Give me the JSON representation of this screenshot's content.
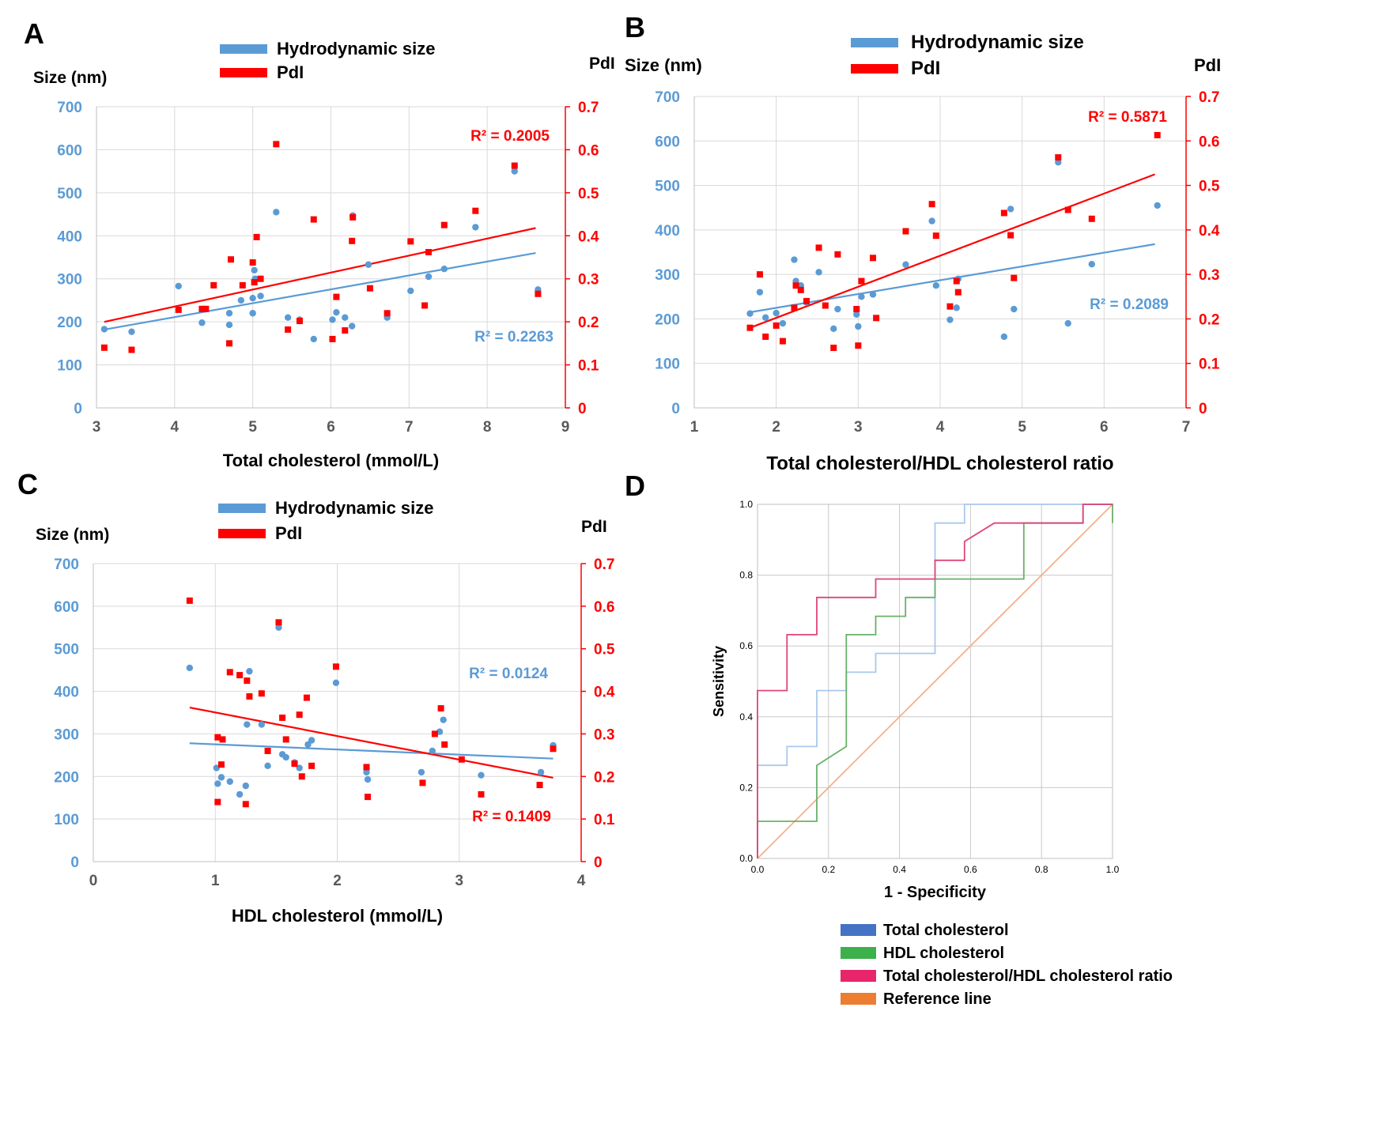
{
  "colors": {
    "blue": "#5B9BD5",
    "red": "#FF0000",
    "roc_total": "#A9C8EC",
    "roc_hdl": "#69B06A",
    "roc_ratio": "#E0447C",
    "roc_ref": "#F6B08A",
    "swatch_total": "#4472C4",
    "swatch_hdl": "#3CB04A",
    "swatch_ratio": "#E8246A",
    "swatch_ref": "#ED7D31"
  },
  "chart_data": [
    {
      "panel": "A",
      "type": "scatter",
      "legend": [
        "Hydrodynamic size",
        "PdI"
      ],
      "ylabel_left": "Size (nm)",
      "ylabel_right": "PdI",
      "xlabel": "Total cholesterol (mmol/L)",
      "xlim": [
        3,
        9
      ],
      "xticks": [
        3,
        4,
        5,
        6,
        7,
        8,
        9
      ],
      "xtick_labels": [
        "3",
        "4",
        "5",
        "6",
        "7",
        "8",
        "9"
      ],
      "ylim_left": [
        0,
        700
      ],
      "yticks_left": [
        0,
        100,
        200,
        300,
        400,
        500,
        600,
        700
      ],
      "ytick_labels_left": [
        "0",
        "100",
        "200",
        "300",
        "400",
        "500",
        "600",
        "700"
      ],
      "ylim_right": [
        0,
        0.7
      ],
      "yticks_right": [
        0,
        0.1,
        0.2,
        0.3,
        0.4,
        0.5,
        0.6,
        0.7
      ],
      "ytick_labels_right": [
        "0",
        "0.1",
        "0.2",
        "0.3",
        "0.4",
        "0.5",
        "0.6",
        "0.7"
      ],
      "series": [
        {
          "name": "Hydrodynamic size",
          "axis": "left",
          "x": [
            3.1,
            3.45,
            4.05,
            4.35,
            4.7,
            4.7,
            4.85,
            5.0,
            5.0,
            5.02,
            5.03,
            5.1,
            5.3,
            5.45,
            5.6,
            5.78,
            6.02,
            6.07,
            6.18,
            6.27,
            6.28,
            6.48,
            6.72,
            7.02,
            7.25,
            7.45,
            7.85,
            8.35,
            8.65
          ],
          "y": [
            183,
            177,
            283,
            198,
            220,
            193,
            250,
            255,
            220,
            320,
            300,
            260,
            455,
            210,
            205,
            160,
            205,
            222,
            210,
            190,
            447,
            333,
            210,
            272,
            305,
            323,
            420,
            550,
            275
          ],
          "r2": "R² = 0.2263",
          "trend": [
            [
              3.1,
              182
            ],
            [
              8.62,
              360
            ]
          ]
        },
        {
          "name": "PdI",
          "axis": "right",
          "x": [
            3.1,
            3.45,
            4.05,
            4.35,
            4.4,
            4.5,
            4.7,
            4.72,
            4.87,
            5.0,
            5.02,
            5.05,
            5.1,
            5.3,
            5.45,
            5.6,
            5.78,
            6.02,
            6.07,
            6.18,
            6.27,
            6.28,
            6.5,
            6.72,
            7.02,
            7.2,
            7.25,
            7.45,
            7.85,
            8.35,
            8.65
          ],
          "y": [
            0.14,
            0.135,
            0.228,
            0.23,
            0.23,
            0.285,
            0.15,
            0.345,
            0.285,
            0.338,
            0.292,
            0.397,
            0.3,
            0.613,
            0.182,
            0.202,
            0.438,
            0.16,
            0.258,
            0.18,
            0.388,
            0.443,
            0.278,
            0.22,
            0.387,
            0.238,
            0.362,
            0.425,
            0.458,
            0.563,
            0.265
          ],
          "r2": "R² = 0.2005",
          "trend": [
            [
              3.1,
              0.2
            ],
            [
              8.62,
              0.418
            ]
          ]
        }
      ]
    },
    {
      "panel": "B",
      "type": "scatter",
      "legend": [
        "Hydrodynamic size",
        "PdI"
      ],
      "ylabel_left": "Size (nm)",
      "ylabel_right": "PdI",
      "xlabel": "Total cholesterol/HDL cholesterol ratio",
      "xlim": [
        1,
        7
      ],
      "xticks": [
        1,
        2,
        3,
        4,
        5,
        6,
        7
      ],
      "xtick_labels": [
        "1",
        "2",
        "3",
        "4",
        "5",
        "6",
        "7"
      ],
      "ylim_left": [
        0,
        700
      ],
      "yticks_left": [
        0,
        100,
        200,
        300,
        400,
        500,
        600,
        700
      ],
      "ytick_labels_left": [
        "0",
        "100",
        "200",
        "300",
        "400",
        "500",
        "600",
        "700"
      ],
      "ylim_right": [
        0,
        0.7
      ],
      "yticks_right": [
        0,
        0.1,
        0.2,
        0.3,
        0.4,
        0.5,
        0.6,
        0.7
      ],
      "ytick_labels_right": [
        "0",
        "0.1",
        "0.2",
        "0.3",
        "0.4",
        "0.5",
        "0.6",
        "0.7"
      ],
      "series": [
        {
          "name": "Hydrodynamic size",
          "axis": "left",
          "x": [
            1.68,
            1.8,
            1.87,
            2.0,
            2.08,
            2.22,
            2.24,
            2.3,
            2.37,
            2.52,
            2.7,
            2.75,
            2.98,
            3.0,
            3.04,
            3.18,
            3.58,
            3.9,
            3.95,
            4.12,
            4.2,
            4.22,
            4.78,
            4.86,
            4.9,
            5.44,
            5.56,
            5.85,
            6.65
          ],
          "y": [
            212,
            260,
            203,
            213,
            190,
            333,
            285,
            275,
            237,
            305,
            178,
            222,
            210,
            183,
            250,
            255,
            322,
            420,
            275,
            198,
            225,
            290,
            160,
            447,
            222,
            552,
            190,
            323,
            455
          ],
          "r2": "R² = 0.2089",
          "trend": [
            [
              1.68,
              215
            ],
            [
              6.62,
              368
            ]
          ]
        },
        {
          "name": "PdI",
          "axis": "right",
          "x": [
            1.68,
            1.8,
            1.87,
            2.0,
            2.08,
            2.22,
            2.24,
            2.3,
            2.37,
            2.52,
            2.6,
            2.7,
            2.75,
            2.98,
            3.0,
            3.04,
            3.18,
            3.22,
            3.58,
            3.9,
            3.95,
            4.12,
            4.2,
            4.22,
            4.78,
            4.86,
            4.9,
            5.44,
            5.56,
            5.85,
            6.65
          ],
          "y": [
            0.18,
            0.3,
            0.16,
            0.185,
            0.15,
            0.225,
            0.275,
            0.265,
            0.24,
            0.36,
            0.23,
            0.135,
            0.345,
            0.222,
            0.14,
            0.285,
            0.337,
            0.202,
            0.397,
            0.458,
            0.387,
            0.228,
            0.285,
            0.26,
            0.438,
            0.388,
            0.292,
            0.563,
            0.445,
            0.425,
            0.613
          ],
          "r2": "R² = 0.5871",
          "trend": [
            [
              1.68,
              0.18
            ],
            [
              6.62,
              0.525
            ]
          ]
        }
      ]
    },
    {
      "panel": "C",
      "type": "scatter",
      "legend": [
        "Hydrodynamic size",
        "PdI"
      ],
      "ylabel_left": "Size (nm)",
      "ylabel_right": "PdI",
      "xlabel": "HDL cholesterol (mmol/L)",
      "xlim": [
        0,
        4
      ],
      "xticks": [
        0,
        1,
        2,
        3,
        4
      ],
      "xtick_labels": [
        "0",
        "1",
        "2",
        "3",
        "4"
      ],
      "ylim_left": [
        0,
        700
      ],
      "yticks_left": [
        0,
        100,
        200,
        300,
        400,
        500,
        600,
        700
      ],
      "ytick_labels_left": [
        "0",
        "100",
        "200",
        "300",
        "400",
        "500",
        "600",
        "700"
      ],
      "ylim_right": [
        0,
        0.7
      ],
      "yticks_right": [
        0,
        0.1,
        0.2,
        0.3,
        0.4,
        0.5,
        0.6,
        0.7
      ],
      "ytick_labels_right": [
        "0",
        "0.1",
        "0.2",
        "0.3",
        "0.4",
        "0.5",
        "0.6",
        "0.7"
      ],
      "series": [
        {
          "name": "Hydrodynamic size",
          "axis": "left",
          "x": [
            0.79,
            1.01,
            1.02,
            1.05,
            1.12,
            1.2,
            1.25,
            1.26,
            1.28,
            1.38,
            1.43,
            1.52,
            1.55,
            1.58,
            1.65,
            1.69,
            1.76,
            1.79,
            1.99,
            2.24,
            2.25,
            2.69,
            2.78,
            2.84,
            2.87,
            3.18,
            3.67,
            3.77
          ],
          "y": [
            455,
            220,
            183,
            198,
            188,
            158,
            178,
            322,
            447,
            322,
            225,
            550,
            252,
            245,
            233,
            220,
            275,
            285,
            420,
            210,
            193,
            210,
            260,
            305,
            333,
            203,
            210,
            273
          ],
          "r2": "R² = 0.0124",
          "trend": [
            [
              0.79,
              278
            ],
            [
              3.77,
              242
            ]
          ]
        },
        {
          "name": "PdI",
          "axis": "right",
          "x": [
            0.79,
            1.02,
            1.02,
            1.05,
            1.06,
            1.12,
            1.2,
            1.25,
            1.26,
            1.28,
            1.38,
            1.43,
            1.52,
            1.55,
            1.58,
            1.65,
            1.69,
            1.71,
            1.75,
            1.79,
            1.99,
            2.24,
            2.25,
            2.7,
            2.8,
            2.85,
            2.88,
            3.02,
            3.18,
            3.66,
            3.77
          ],
          "y": [
            0.613,
            0.292,
            0.14,
            0.228,
            0.287,
            0.445,
            0.438,
            0.135,
            0.425,
            0.388,
            0.395,
            0.26,
            0.562,
            0.338,
            0.287,
            0.23,
            0.345,
            0.2,
            0.385,
            0.225,
            0.458,
            0.222,
            0.152,
            0.185,
            0.3,
            0.36,
            0.275,
            0.24,
            0.158,
            0.18,
            0.265
          ],
          "r2": "R² = 0.1409",
          "trend": [
            [
              0.79,
              0.362
            ],
            [
              3.77,
              0.197
            ]
          ]
        }
      ]
    },
    {
      "panel": "D",
      "type": "line",
      "xlabel": "1 - Specificity",
      "ylabel": "Sensitivity",
      "xlim": [
        0,
        1
      ],
      "ylim": [
        0,
        1
      ],
      "xticks": [
        0,
        0.2,
        0.4,
        0.6,
        0.8,
        1
      ],
      "xtick_labels": [
        "0.0",
        "0.2",
        "0.4",
        "0.6",
        "0.8",
        "1.0"
      ],
      "yticks": [
        0,
        0.2,
        0.4,
        0.6,
        0.8,
        1
      ],
      "ytick_labels": [
        "0.0",
        "0.2",
        "0.4",
        "0.6",
        "0.8",
        "1.0"
      ],
      "series": [
        {
          "name": "Total cholesterol",
          "points": [
            [
              0,
              0
            ],
            [
              0,
              0.263
            ],
            [
              0.083,
              0.263
            ],
            [
              0.083,
              0.316
            ],
            [
              0.167,
              0.316
            ],
            [
              0.167,
              0.474
            ],
            [
              0.25,
              0.474
            ],
            [
              0.25,
              0.526
            ],
            [
              0.333,
              0.526
            ],
            [
              0.333,
              0.579
            ],
            [
              0.5,
              0.579
            ],
            [
              0.5,
              0.947
            ],
            [
              0.583,
              0.947
            ],
            [
              0.583,
              1.0
            ],
            [
              1.0,
              1.0
            ]
          ]
        },
        {
          "name": "HDL cholesterol",
          "points": [
            [
              0,
              0
            ],
            [
              0,
              0.105
            ],
            [
              0.167,
              0.105
            ],
            [
              0.167,
              0.263
            ],
            [
              0.25,
              0.316
            ],
            [
              0.25,
              0.632
            ],
            [
              0.333,
              0.632
            ],
            [
              0.333,
              0.684
            ],
            [
              0.417,
              0.684
            ],
            [
              0.417,
              0.737
            ],
            [
              0.5,
              0.737
            ],
            [
              0.5,
              0.789
            ],
            [
              0.75,
              0.789
            ],
            [
              0.75,
              0.947
            ],
            [
              0.917,
              0.947
            ],
            [
              0.917,
              1.0
            ],
            [
              1.0,
              1.0
            ],
            [
              1.0,
              0.947
            ]
          ]
        },
        {
          "name": "Total cholesterol/HDL cholesterol ratio",
          "points": [
            [
              0,
              0
            ],
            [
              0,
              0.474
            ],
            [
              0.083,
              0.474
            ],
            [
              0.083,
              0.632
            ],
            [
              0.167,
              0.632
            ],
            [
              0.167,
              0.737
            ],
            [
              0.333,
              0.737
            ],
            [
              0.333,
              0.789
            ],
            [
              0.5,
              0.789
            ],
            [
              0.5,
              0.842
            ],
            [
              0.583,
              0.842
            ],
            [
              0.583,
              0.895
            ],
            [
              0.667,
              0.947
            ],
            [
              0.917,
              0.947
            ],
            [
              0.917,
              1.0
            ],
            [
              1.0,
              1.0
            ]
          ]
        },
        {
          "name": "Reference line",
          "points": [
            [
              0,
              0
            ],
            [
              1,
              1
            ]
          ]
        }
      ],
      "legend": [
        "Total cholesterol",
        "HDL cholesterol",
        "Total cholesterol/HDL cholesterol ratio",
        "Reference line"
      ]
    }
  ]
}
